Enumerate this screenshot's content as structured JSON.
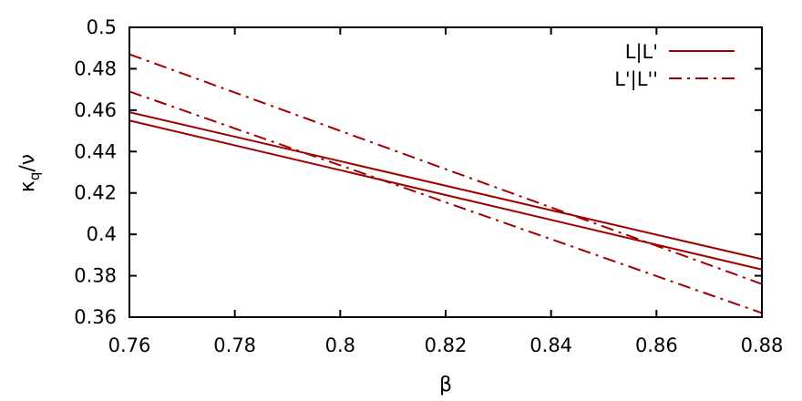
{
  "chart_data": {
    "type": "line",
    "xlabel": "β",
    "ylabel_main": "κ",
    "ylabel_sub": "q",
    "ylabel_tail": "/ν",
    "xlim": [
      0.76,
      0.88
    ],
    "ylim": [
      0.36,
      0.5
    ],
    "xticks": [
      "0.76",
      "0.78",
      "0.8",
      "0.82",
      "0.84",
      "0.86",
      "0.88"
    ],
    "yticks": [
      "0.36",
      "0.38",
      "0.4",
      "0.42",
      "0.44",
      "0.46",
      "0.48",
      "0.5"
    ],
    "grid": false,
    "legend_position": "top-right",
    "color": "#a00000",
    "series": [
      {
        "name": "L|L'",
        "style": "solid",
        "x": [
          0.76,
          0.88
        ],
        "y": [
          0.459,
          0.388
        ]
      },
      {
        "name": "",
        "style": "solid",
        "x": [
          0.76,
          0.88
        ],
        "y": [
          0.455,
          0.383
        ]
      },
      {
        "name": "L'|L''",
        "style": "dashdot",
        "x": [
          0.76,
          0.88
        ],
        "y": [
          0.487,
          0.376
        ]
      },
      {
        "name": "",
        "style": "dashdot",
        "x": [
          0.76,
          0.88
        ],
        "y": [
          0.469,
          0.362
        ]
      }
    ]
  }
}
